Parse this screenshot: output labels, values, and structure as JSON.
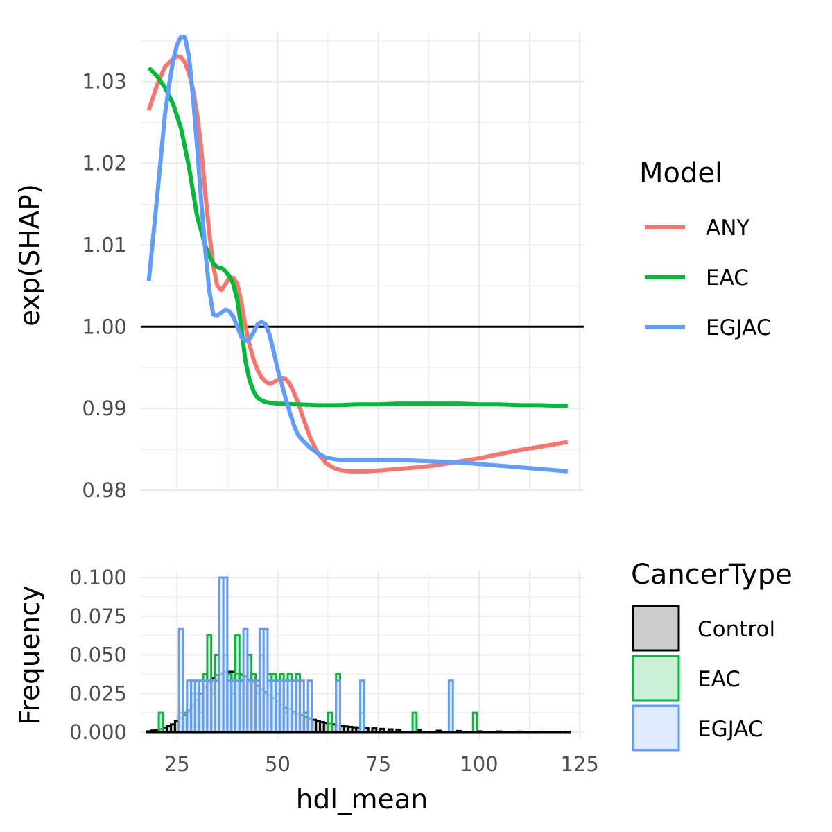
{
  "chart_data": [
    {
      "type": "line",
      "xlabel": "",
      "ylabel": "exp(SHAP)",
      "xlim": [
        16,
        126
      ],
      "ylim": [
        0.98,
        1.036
      ],
      "yticks": [
        0.98,
        0.99,
        1.0,
        1.01,
        1.02,
        1.03
      ],
      "ytick_labels": [
        "0.98",
        "0.99",
        "1.00",
        "1.01",
        "1.02",
        "1.03"
      ],
      "xticks": [
        25,
        50,
        75,
        100,
        125
      ],
      "grid": true,
      "reference_line": {
        "y": 1.0,
        "color": "#000000"
      },
      "legend": {
        "title": "Model",
        "placement": "right"
      },
      "series": [
        {
          "name": "ANY",
          "color": "#F8766D",
          "x": [
            18,
            20,
            22,
            24,
            25,
            26,
            27,
            28,
            29,
            30,
            31,
            32,
            33,
            34,
            35,
            36,
            37,
            38,
            39,
            40,
            41,
            42,
            43,
            44,
            45,
            46,
            47,
            48,
            49,
            50,
            51,
            52,
            53,
            54,
            55,
            56,
            58,
            60,
            62,
            64,
            66,
            68,
            70,
            72,
            75,
            80,
            85,
            90,
            95,
            100,
            105,
            110,
            115,
            122
          ],
          "y": [
            1.0265,
            1.0295,
            1.0318,
            1.0328,
            1.0331,
            1.033,
            1.0323,
            1.031,
            1.029,
            1.026,
            1.022,
            1.0165,
            1.0115,
            1.0075,
            1.005,
            1.0045,
            1.0052,
            1.006,
            1.006,
            1.0052,
            1.003,
            1.0,
            0.9978,
            0.996,
            0.9947,
            0.9938,
            0.9933,
            0.993,
            0.9932,
            0.9935,
            0.9937,
            0.9936,
            0.993,
            0.992,
            0.9908,
            0.9893,
            0.9865,
            0.9845,
            0.9833,
            0.9827,
            0.9824,
            0.9823,
            0.9823,
            0.9823,
            0.9824,
            0.9826,
            0.9828,
            0.9831,
            0.9835,
            0.9839,
            0.9844,
            0.9849,
            0.9853,
            0.9859
          ]
        },
        {
          "name": "EAC",
          "color": "#00BA38",
          "x": [
            18,
            20,
            22,
            24,
            26,
            28,
            30,
            32,
            33,
            34,
            35,
            36,
            37,
            38,
            39,
            40,
            41,
            42,
            43,
            44,
            45,
            46,
            47,
            48,
            50,
            55,
            60,
            65,
            70,
            75,
            80,
            85,
            90,
            95,
            100,
            105,
            110,
            115,
            122
          ],
          "y": [
            1.0317,
            1.0307,
            1.0293,
            1.0273,
            1.0243,
            1.0195,
            1.0135,
            1.01,
            1.0087,
            1.0077,
            1.0073,
            1.0072,
            1.0068,
            1.0062,
            1.0052,
            1.0032,
            0.9998,
            0.9958,
            0.9935,
            0.9921,
            0.9913,
            0.991,
            0.9908,
            0.9907,
            0.9906,
            0.9905,
            0.9904,
            0.9904,
            0.9905,
            0.9905,
            0.9906,
            0.9906,
            0.9906,
            0.9906,
            0.9905,
            0.9905,
            0.9904,
            0.9904,
            0.9903
          ]
        },
        {
          "name": "EGJAC",
          "color": "#619CFF",
          "x": [
            18,
            20,
            22,
            23,
            24,
            25,
            26,
            27,
            28,
            29,
            30,
            31,
            32,
            33,
            34,
            35,
            36,
            37,
            38,
            39,
            40,
            41,
            42,
            43,
            44,
            45,
            46,
            47,
            48,
            49,
            50,
            51,
            52,
            53,
            54,
            55,
            56,
            58,
            60,
            62,
            64,
            66,
            68,
            70,
            75,
            80,
            85,
            90,
            95,
            100,
            105,
            110,
            115,
            122
          ],
          "y": [
            1.0056,
            1.0155,
            1.026,
            1.0295,
            1.0325,
            1.0345,
            1.0355,
            1.0354,
            1.033,
            1.028,
            1.022,
            1.0155,
            1.0095,
            1.0045,
            1.0015,
            1.0014,
            1.0017,
            1.0021,
            1.0019,
            1.0012,
            1.0,
            0.9987,
            0.9983,
            0.9985,
            0.9993,
            1.0003,
            1.0006,
            1.0003,
            0.999,
            0.997,
            0.9948,
            0.993,
            0.9912,
            0.9895,
            0.988,
            0.9868,
            0.9862,
            0.9852,
            0.9845,
            0.984,
            0.9838,
            0.9837,
            0.9837,
            0.9837,
            0.9837,
            0.9837,
            0.9836,
            0.9835,
            0.9834,
            0.9832,
            0.983,
            0.9828,
            0.9826,
            0.9823
          ]
        }
      ]
    },
    {
      "type": "bar",
      "xlabel": "hdl_mean",
      "ylabel": "Frequency",
      "xlim": [
        16,
        126
      ],
      "ylim": [
        0,
        0.1
      ],
      "yticks": [
        0,
        0.025,
        0.05,
        0.075,
        0.1
      ],
      "ytick_labels": [
        "0.000",
        "0.025",
        "0.050",
        "0.075",
        "0.100"
      ],
      "xticks": [
        25,
        50,
        75,
        100,
        125
      ],
      "xtick_labels": [
        "25",
        "50",
        "75",
        "100",
        "125"
      ],
      "grid": true,
      "bin_width": 1,
      "legend": {
        "title": "CancerType",
        "placement": "right"
      },
      "series": [
        {
          "name": "Control",
          "fill": "#CCCCCC",
          "stroke": "#000000",
          "x": [
            18,
            19,
            20,
            21,
            22,
            23,
            24,
            25,
            26,
            27,
            28,
            29,
            30,
            31,
            32,
            33,
            34,
            35,
            36,
            37,
            38,
            39,
            40,
            41,
            42,
            43,
            44,
            45,
            46,
            47,
            48,
            49,
            50,
            51,
            52,
            53,
            54,
            55,
            56,
            57,
            58,
            59,
            60,
            61,
            62,
            63,
            64,
            65,
            66,
            67,
            68,
            69,
            70,
            72,
            74,
            76,
            78,
            80,
            85,
            90,
            95,
            100,
            105,
            110,
            115,
            122
          ],
          "values": [
            0.0005,
            0.001,
            0.0015,
            0.002,
            0.003,
            0.004,
            0.005,
            0.007,
            0.009,
            0.011,
            0.014,
            0.017,
            0.021,
            0.025,
            0.029,
            0.032,
            0.035,
            0.037,
            0.038,
            0.039,
            0.039,
            0.039,
            0.038,
            0.037,
            0.036,
            0.034,
            0.032,
            0.03,
            0.028,
            0.026,
            0.024,
            0.022,
            0.02,
            0.018,
            0.016,
            0.015,
            0.013,
            0.012,
            0.011,
            0.01,
            0.009,
            0.008,
            0.007,
            0.0065,
            0.006,
            0.0055,
            0.005,
            0.0045,
            0.004,
            0.0037,
            0.0034,
            0.0031,
            0.003,
            0.0027,
            0.0024,
            0.0021,
            0.0018,
            0.0016,
            0.0012,
            0.0009,
            0.0007,
            0.0005,
            0.0004,
            0.0003,
            0.0002,
            0.0001
          ]
        },
        {
          "name": "EAC",
          "fill": "#CCEFD7",
          "stroke": "#00BA38",
          "x": [
            21,
            26,
            27,
            28,
            29,
            30,
            31,
            32,
            33,
            34,
            35,
            36,
            37,
            38,
            39,
            40,
            41,
            42,
            43,
            44,
            45,
            46,
            47,
            48,
            49,
            50,
            51,
            52,
            53,
            54,
            55,
            57,
            63,
            65,
            71,
            84,
            99
          ],
          "values": [
            0.0125,
            0.0125,
            0.0125,
            0.0125,
            0.025,
            0.025,
            0.0125,
            0.0375,
            0.0625,
            0.025,
            0.05,
            0.0375,
            0.05,
            0.0375,
            0.025,
            0.0625,
            0.0375,
            0.025,
            0.05,
            0.0375,
            0.025,
            0.05,
            0.025,
            0.0375,
            0.0375,
            0.025,
            0.0375,
            0.0125,
            0.0375,
            0.0125,
            0.0375,
            0.0125,
            0.0125,
            0.0375,
            0.0125,
            0.0125,
            0.0125
          ]
        },
        {
          "name": "EGJAC",
          "fill": "#DFEBFF",
          "stroke": "#619CFF",
          "x": [
            26,
            28,
            29,
            30,
            31,
            32,
            33,
            34,
            35,
            36,
            37,
            38,
            39,
            40,
            41,
            42,
            43,
            44,
            45,
            46,
            47,
            48,
            49,
            50,
            51,
            52,
            53,
            54,
            55,
            56,
            58,
            65,
            71,
            93
          ],
          "values": [
            0.0667,
            0.0333,
            0.0333,
            0.0333,
            0.0333,
            0.0333,
            0.0333,
            0.0333,
            0.0333,
            0.1,
            0.1,
            0.0333,
            0.0333,
            0.0333,
            0.0333,
            0.0667,
            0.0333,
            0.0333,
            0.0333,
            0.0667,
            0.0667,
            0.0333,
            0.0333,
            0.0333,
            0.0333,
            0.0333,
            0.0333,
            0.0333,
            0.0333,
            0.0333,
            0.0333,
            0.0333,
            0.0333,
            0.0333
          ]
        }
      ]
    }
  ]
}
